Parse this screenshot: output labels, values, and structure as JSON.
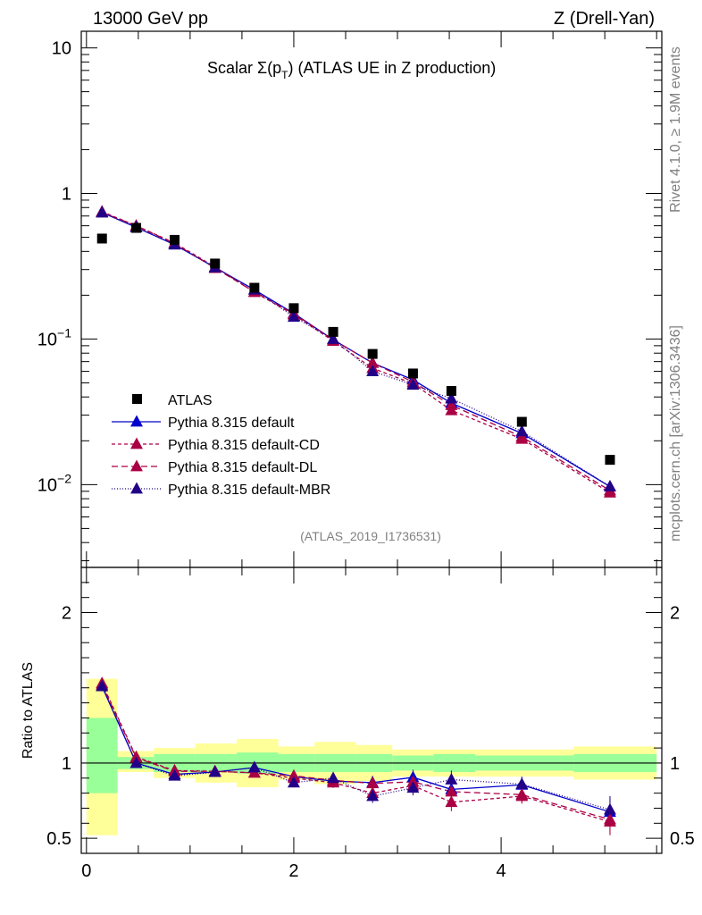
{
  "header": {
    "left": "13000 GeV pp",
    "right": "Z (Drell-Yan)"
  },
  "side_labels": {
    "rivet": "Rivet 4.1.0, ≥ 1.9M events",
    "mcplots": "mcplots.cern.ch [arXiv:1306.3436]"
  },
  "chart_data": {
    "type": "scatter",
    "title": "Scalar Σ(p_T) (ATLAS UE in Z production)",
    "title_prefix": "Scalar Σ(p",
    "title_sub": "T",
    "title_suffix": ") (ATLAS UE in Z production)",
    "analysis_id": "(ATLAS_2019_I1736531)",
    "xlim": [
      -0.05,
      5.55
    ],
    "main": {
      "yscale": "log",
      "ylim": [
        0.0027,
        13
      ],
      "ytick_labels": [
        {
          "value": 10,
          "base": "10",
          "exp": ""
        },
        {
          "value": 1,
          "base": "1",
          "exp": ""
        },
        {
          "value": 0.1,
          "base": "10",
          "exp": "−1"
        },
        {
          "value": 0.01,
          "base": "10",
          "exp": "−2"
        }
      ]
    },
    "ratio": {
      "ylabel": "Ratio to ATLAS",
      "ylim": [
        0.4,
        2.3
      ],
      "yticks": [
        0.5,
        1,
        2
      ],
      "ytick_labels": [
        "0.5",
        "1",
        "2"
      ]
    },
    "xtick_labels": [
      "0",
      "2",
      "4"
    ],
    "xticks": [
      0,
      2,
      4
    ],
    "legend_position": "lower-left",
    "bins": {
      "edges_lo": [
        0.0,
        0.3,
        0.65,
        1.05,
        1.45,
        1.85,
        2.2,
        2.6,
        2.95,
        3.35,
        3.75,
        4.7
      ],
      "edges_hi": [
        0.3,
        0.65,
        1.05,
        1.45,
        1.85,
        2.2,
        2.6,
        2.95,
        3.35,
        3.75,
        4.7,
        5.5
      ],
      "x": [
        0.15,
        0.48,
        0.85,
        1.24,
        1.62,
        2.0,
        2.38,
        2.76,
        3.15,
        3.52,
        4.2,
        5.05
      ]
    },
    "atlas": {
      "name": "ATLAS",
      "values": [
        0.49,
        0.58,
        0.48,
        0.33,
        0.225,
        0.163,
        0.112,
        0.079,
        0.058,
        0.044,
        0.027,
        0.0148
      ],
      "band_inner": [
        [
          0.8,
          1.3
        ],
        [
          0.96,
          1.04
        ],
        [
          0.94,
          1.06
        ],
        [
          0.94,
          1.06
        ],
        [
          0.93,
          1.07
        ],
        [
          0.94,
          1.06
        ],
        [
          0.94,
          1.06
        ],
        [
          0.94,
          1.06
        ],
        [
          0.95,
          1.05
        ],
        [
          0.94,
          1.06
        ],
        [
          0.95,
          1.05
        ],
        [
          0.94,
          1.06
        ]
      ],
      "band_outer": [
        [
          0.52,
          1.56
        ],
        [
          0.94,
          1.08
        ],
        [
          0.9,
          1.1
        ],
        [
          0.87,
          1.13
        ],
        [
          0.84,
          1.16
        ],
        [
          0.89,
          1.11
        ],
        [
          0.86,
          1.14
        ],
        [
          0.88,
          1.12
        ],
        [
          0.91,
          1.09
        ],
        [
          0.91,
          1.09
        ],
        [
          0.91,
          1.09
        ],
        [
          0.89,
          1.11
        ]
      ]
    },
    "series": [
      {
        "name": "Pythia 8.315 default",
        "color": "#0000cc",
        "dash": "solid",
        "values": [
          0.74,
          0.585,
          0.445,
          0.31,
          0.218,
          0.15,
          0.099,
          0.0685,
          0.0525,
          0.0363,
          0.0225,
          0.0097
        ],
        "ratio": [
          1.51,
          1.0,
          0.925,
          0.94,
          0.97,
          0.91,
          0.88,
          0.87,
          0.905,
          0.825,
          0.855,
          0.675
        ],
        "ratio_err": [
          0.02,
          0.01,
          0.015,
          0.02,
          0.025,
          0.03,
          0.03,
          0.045,
          0.05,
          0.06,
          0.05,
          0.09
        ]
      },
      {
        "name": "Pythia 8.315 default-CD",
        "color": "#aa0044",
        "dash": "4,3",
        "values": [
          0.75,
          0.6,
          0.457,
          0.313,
          0.21,
          0.147,
          0.097,
          0.063,
          0.0494,
          0.0324,
          0.0206,
          0.0088
        ],
        "ratio": [
          1.53,
          1.04,
          0.95,
          0.945,
          0.935,
          0.9,
          0.87,
          0.8,
          0.85,
          0.74,
          0.78,
          0.61
        ],
        "ratio_err": [
          0.02,
          0.01,
          0.015,
          0.02,
          0.025,
          0.03,
          0.035,
          0.045,
          0.05,
          0.06,
          0.05,
          0.09
        ]
      },
      {
        "name": "Pythia 8.315 default-DL",
        "color": "#aa0044",
        "dash": "7,4",
        "values": [
          0.74,
          0.6,
          0.453,
          0.307,
          0.211,
          0.149,
          0.099,
          0.0685,
          0.0507,
          0.0351,
          0.0213,
          0.0091
        ],
        "ratio": [
          1.52,
          1.035,
          0.945,
          0.945,
          0.935,
          0.915,
          0.885,
          0.865,
          0.875,
          0.81,
          0.79,
          0.625
        ],
        "ratio_err": [
          0.02,
          0.01,
          0.015,
          0.02,
          0.025,
          0.03,
          0.035,
          0.045,
          0.05,
          0.06,
          0.05,
          0.09
        ]
      },
      {
        "name": "Pythia 8.315 default-MBR",
        "color": "#220088",
        "dash": "1,2",
        "values": [
          0.74,
          0.585,
          0.445,
          0.31,
          0.218,
          0.142,
          0.1,
          0.06,
          0.0484,
          0.039,
          0.0232,
          0.0097
        ],
        "ratio": [
          1.51,
          1.0,
          0.915,
          0.94,
          0.97,
          0.87,
          0.9,
          0.78,
          0.835,
          0.89,
          0.86,
          0.69
        ],
        "ratio_err": [
          0.02,
          0.01,
          0.015,
          0.02,
          0.025,
          0.03,
          0.035,
          0.045,
          0.05,
          0.06,
          0.05,
          0.09
        ]
      }
    ]
  }
}
